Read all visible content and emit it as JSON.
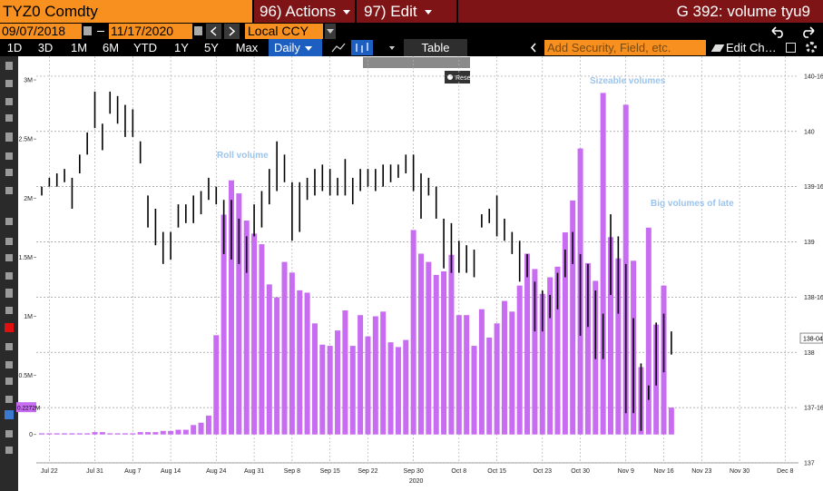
{
  "ui": {
    "security": "TYZ0 Comdty",
    "actions": "96) Actions",
    "edit": "97) Edit",
    "title": "G 392: volume tyu9",
    "start_date": "09/07/2018",
    "end_date": "11/17/2020",
    "currency": "Local CCY",
    "ranges": [
      "1D",
      "3D",
      "1M",
      "6M",
      "YTD",
      "1Y",
      "5Y",
      "Max"
    ],
    "frequency": "Daily",
    "table": "Table",
    "search_placeholder": "Add Security, Field, etc.",
    "edit_chart": "Edit Ch…",
    "reset": "Reset"
  },
  "chart_data": {
    "type": "bar",
    "grid": true,
    "color": "#c86cf2",
    "price_color": "#000000",
    "categories": [
      null,
      "Jul 22",
      null,
      null,
      null,
      null,
      null,
      "Jul 31",
      null,
      null,
      null,
      null,
      "Aug 7",
      null,
      null,
      null,
      null,
      "Aug 14",
      null,
      null,
      null,
      null,
      null,
      "Aug 24",
      null,
      null,
      null,
      null,
      "Aug 31",
      null,
      null,
      null,
      null,
      "Sep 8",
      null,
      null,
      null,
      null,
      "Sep 15",
      null,
      null,
      null,
      null,
      "Sep 22",
      null,
      null,
      null,
      null,
      null,
      "Sep 30",
      null,
      null,
      null,
      null,
      null,
      "Oct 8",
      null,
      null,
      null,
      null,
      "Oct 15",
      null,
      null,
      null,
      null,
      null,
      "Oct 23",
      null,
      null,
      null,
      null,
      "Oct 30",
      null,
      null,
      null,
      null,
      null,
      "Nov 9",
      null,
      null,
      null,
      null,
      "Nov 16",
      null,
      null,
      null,
      null,
      "Nov 23",
      null,
      null,
      null,
      null,
      "Nov 30",
      null,
      null,
      null,
      null,
      null,
      "Dec 8"
    ],
    "values": [
      0.01,
      0.01,
      0.01,
      0.01,
      0.01,
      0.01,
      0.01,
      0.02,
      0.02,
      0.01,
      0.01,
      0.01,
      0.01,
      0.02,
      0.02,
      0.02,
      0.03,
      0.03,
      0.04,
      0.04,
      0.08,
      0.1,
      0.16,
      0.84,
      1.86,
      2.15,
      2.04,
      1.81,
      1.7,
      1.61,
      1.27,
      1.16,
      1.46,
      1.37,
      1.22,
      1.2,
      0.94,
      0.76,
      0.75,
      0.88,
      1.05,
      0.75,
      1.01,
      0.83,
      1.0,
      1.04,
      0.78,
      0.74,
      0.8,
      1.73,
      1.53,
      1.46,
      1.35,
      1.38,
      1.52,
      1.01,
      1.01,
      0.75,
      1.06,
      0.82,
      0.94,
      1.13,
      1.04,
      1.26,
      1.53,
      1.4,
      1.19,
      1.33,
      1.42,
      1.71,
      1.98,
      2.42,
      1.45,
      1.3,
      2.89,
      1.67,
      1.49,
      2.79,
      1.47,
      0.57,
      1.75,
      0.93,
      1.26,
      0.2272,
      null,
      null,
      null,
      null,
      null,
      null,
      null,
      null,
      null,
      null,
      null,
      null,
      null,
      null,
      null
    ],
    "price_high": [
      139.5,
      139.58,
      139.62,
      139.66,
      139.58,
      139.79,
      139.99,
      140.36,
      140.07,
      140.36,
      140.32,
      140.24,
      140.2,
      139.91,
      139.42,
      139.3,
      139.09,
      139.09,
      139.34,
      139.34,
      139.42,
      139.46,
      139.58,
      139.5,
      139.38,
      139.38,
      139.21,
      139.05,
      139.34,
      139.46,
      139.66,
      139.91,
      139.79,
      139.54,
      139.54,
      139.58,
      139.66,
      139.7,
      139.66,
      139.58,
      139.75,
      139.58,
      139.66,
      139.66,
      139.66,
      139.7,
      139.7,
      139.7,
      139.79,
      139.79,
      139.62,
      139.58,
      139.5,
      139.21,
      139.17,
      139.01,
      138.97,
      138.93,
      139.25,
      139.3,
      139.42,
      139.21,
      139.09,
      139.01,
      138.89,
      138.64,
      138.56,
      138.52,
      138.72,
      138.93,
      139.09,
      138.89,
      138.8,
      138.56,
      138.35,
      139.25,
      139.05,
      138.8,
      138.31,
      137.9,
      137.7,
      138.27,
      138.35,
      138.19,
      null,
      null,
      null,
      null,
      null,
      null,
      null,
      null,
      null,
      null,
      null,
      null,
      null,
      null,
      null
    ],
    "price_low": [
      139.42,
      139.5,
      139.5,
      139.54,
      139.3,
      139.62,
      139.79,
      140.03,
      139.83,
      140.16,
      140.07,
      139.95,
      139.95,
      139.71,
      139.13,
      138.97,
      138.8,
      138.84,
      139.13,
      139.17,
      139.17,
      139.25,
      139.38,
      139.34,
      138.89,
      138.84,
      138.8,
      138.72,
      139.05,
      139.13,
      139.34,
      139.46,
      139.54,
      139.01,
      139.09,
      139.38,
      139.42,
      139.46,
      139.42,
      139.42,
      139.42,
      139.34,
      139.46,
      139.5,
      139.46,
      139.5,
      139.54,
      139.58,
      139.62,
      139.46,
      139.21,
      139.42,
      139.21,
      138.76,
      138.72,
      138.72,
      138.72,
      138.68,
      139.13,
      139.17,
      139.05,
      139.01,
      138.89,
      138.64,
      138.68,
      138.19,
      138.19,
      138.31,
      138.39,
      138.68,
      138.8,
      138.15,
      138.23,
      137.94,
      137.94,
      138.52,
      138.35,
      137.45,
      137.45,
      137.29,
      137.57,
      137.7,
      137.82,
      137.98,
      null,
      null,
      null,
      null,
      null,
      null,
      null,
      null,
      null,
      null,
      null,
      null,
      null,
      null,
      null
    ],
    "ylim": [
      -0.24,
      3.2
    ],
    "yticks": [
      0,
      {
        "value": 0.5,
        "label": "0.5M"
      },
      {
        "value": 1,
        "label": "1M"
      },
      {
        "value": 1.5,
        "label": "1.5M"
      },
      {
        "value": 2,
        "label": "2M"
      },
      {
        "value": 2.5,
        "label": "2.5M"
      },
      {
        "value": 3,
        "label": "3M"
      }
    ],
    "y2lim": [
      137,
      140.68
    ],
    "y2ticks": [
      137,
      {
        "value": 137.5,
        "label": "137-16"
      },
      138,
      {
        "value": 138.5,
        "label": "138-16"
      },
      139,
      {
        "value": 139.5,
        "label": "139-16"
      },
      140,
      {
        "value": 140.5,
        "label": "140-16"
      }
    ],
    "last_price": {
      "value": 138.125,
      "label": "138-04"
    },
    "last_volume": {
      "value": 0.2272,
      "label": "0.2272M"
    },
    "year_label": "2020",
    "annotations": [
      "Roll volume",
      "Sizeable volumes",
      "Big volumes of late"
    ]
  }
}
